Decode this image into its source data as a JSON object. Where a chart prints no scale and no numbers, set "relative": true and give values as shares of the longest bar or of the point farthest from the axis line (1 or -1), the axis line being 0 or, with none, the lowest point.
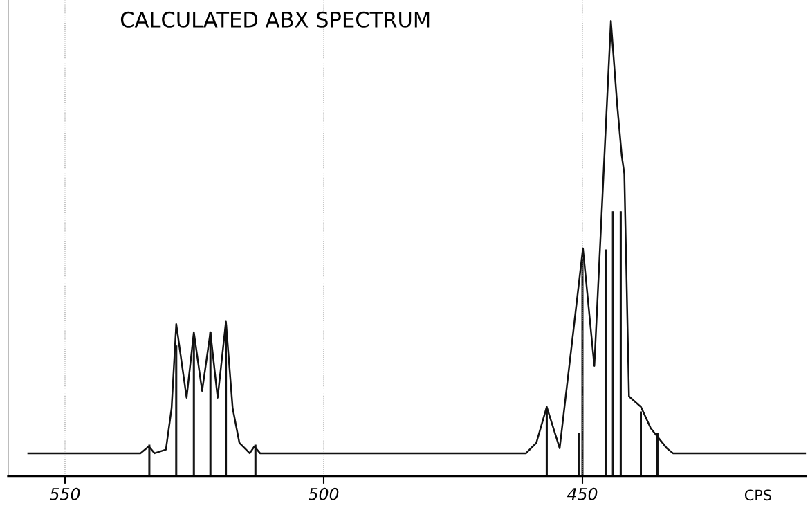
{
  "chart_data": {
    "type": "line",
    "title": "CALCULATED ABX SPECTRUM",
    "xlabel": "CPS",
    "relative": true,
    "xlim": [
      561,
      406.8
    ],
    "xticks": [
      550,
      500,
      450
    ],
    "grid": true,
    "legend": false,
    "marker": "none",
    "line_style": "solid",
    "series": [
      {
        "color": "#111111",
        "x": [
          557.1,
          535.4,
          533.8,
          532.7,
          530.5,
          529.4,
          528.5,
          526.5,
          525.1,
          523.5,
          521.9,
          520.5,
          518.9,
          517.6,
          516.3,
          514.3,
          513.4,
          512.3,
          460.9,
          458.9,
          456.9,
          454.4,
          449.9,
          447.7,
          444.5,
          443.3,
          442.4,
          441.9,
          441.0,
          438.7,
          436.8,
          433.7,
          432.5,
          406.8
        ],
        "values": [
          0.05,
          0.05,
          0.065,
          0.05,
          0.058,
          0.149,
          0.334,
          0.172,
          0.316,
          0.187,
          0.316,
          0.172,
          0.339,
          0.149,
          0.073,
          0.05,
          0.065,
          0.05,
          0.05,
          0.073,
          0.152,
          0.061,
          0.5,
          0.242,
          1.0,
          0.818,
          0.704,
          0.664,
          0.175,
          0.152,
          0.105,
          0.061,
          0.05,
          0.05
        ]
      },
      {
        "type": "bar",
        "color": "#111111",
        "x": [
          533.7,
          528.5,
          525.1,
          521.9,
          518.9,
          513.2,
          456.9,
          450.7,
          450.0,
          445.5,
          444.1,
          442.6,
          438.7,
          435.5
        ],
        "values": [
          0.068,
          0.286,
          0.296,
          0.316,
          0.331,
          0.068,
          0.149,
          0.094,
          0.477,
          0.497,
          0.581,
          0.581,
          0.141,
          0.094
        ]
      }
    ]
  }
}
